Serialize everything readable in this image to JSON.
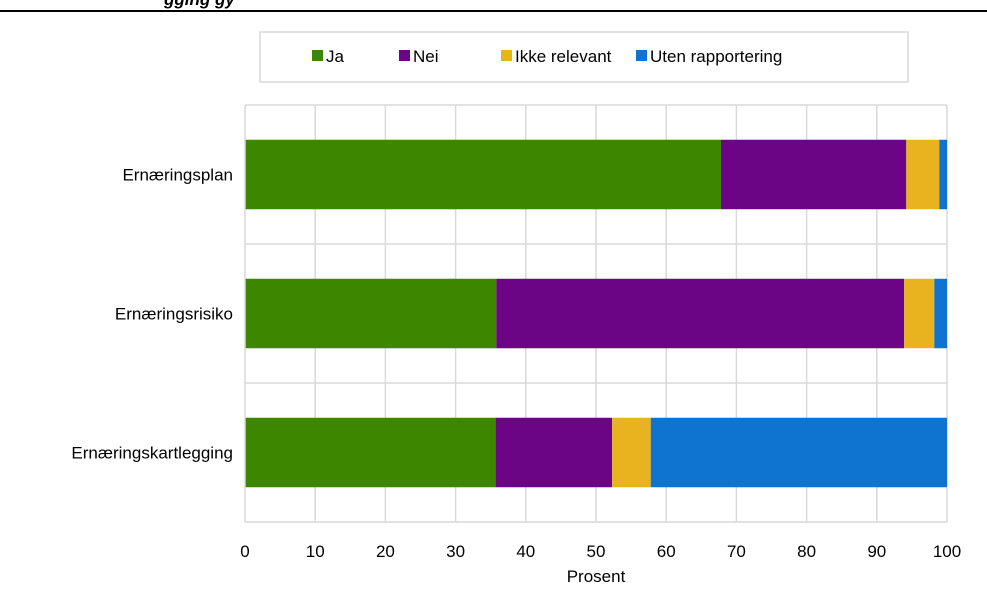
{
  "chart_data": {
    "type": "bar",
    "orientation": "horizontal",
    "stacked": true,
    "header_fragment": "gging gy",
    "categories": [
      "Ernæringsplan",
      "Ernæringsrisiko",
      "Ernæringskartlegging"
    ],
    "series": [
      {
        "name": "Ja",
        "color": "#3c8600",
        "values": [
          67.8,
          35.8,
          35.7
        ]
      },
      {
        "name": "Nei",
        "color": "#6b0586",
        "values": [
          26.4,
          58.1,
          16.6
        ]
      },
      {
        "name": "Ikke relevant",
        "color": "#e9b320",
        "values": [
          4.7,
          4.3,
          5.5
        ]
      },
      {
        "name": "Uten rapportering",
        "color": "#0e74cf",
        "values": [
          1.1,
          1.8,
          42.2
        ]
      }
    ],
    "xlabel": "Prosent",
    "ylabel": "",
    "xlim": [
      0,
      100
    ],
    "xticks": [
      "0",
      "10",
      "20",
      "30",
      "40",
      "50",
      "60",
      "70",
      "80",
      "90",
      "100"
    ],
    "grid": true,
    "legend_position": "top"
  }
}
